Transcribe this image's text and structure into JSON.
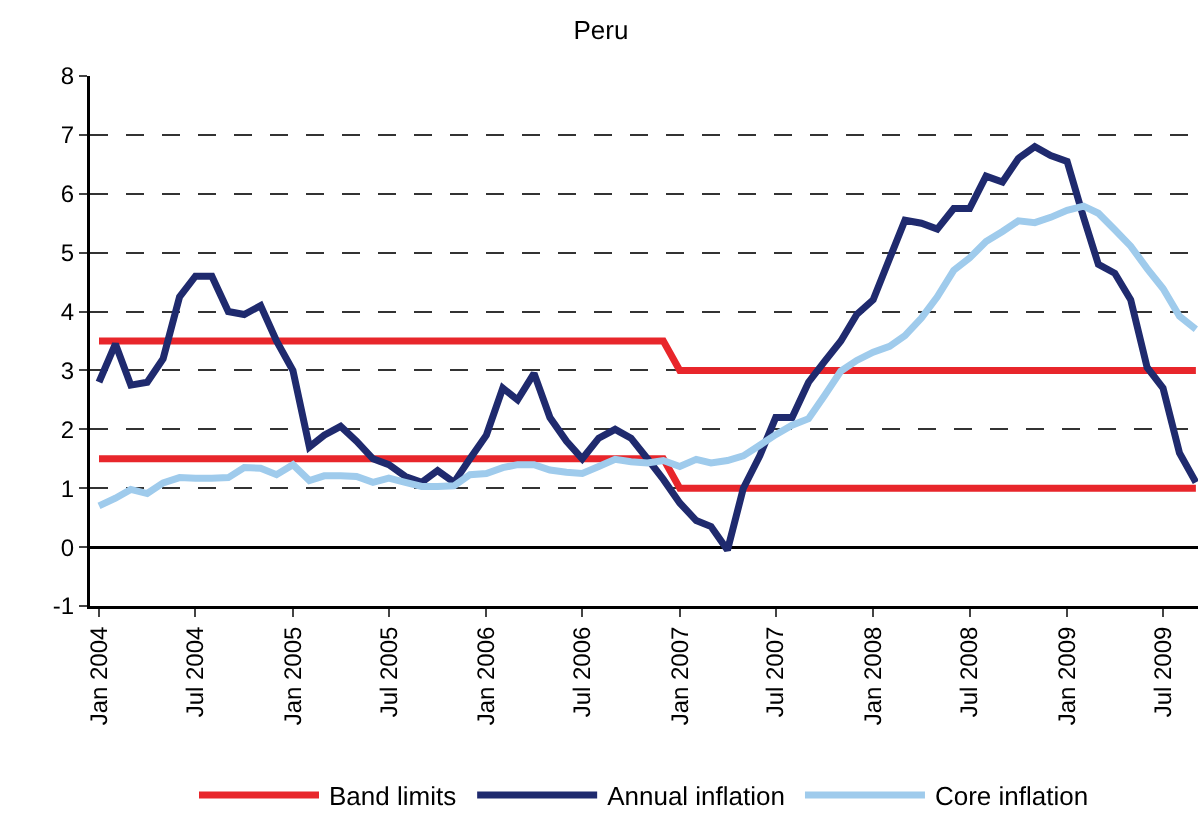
{
  "chart_data": {
    "type": "line",
    "title": "Peru",
    "x": [
      "2004-01",
      "2004-02",
      "2004-03",
      "2004-04",
      "2004-05",
      "2004-06",
      "2004-07",
      "2004-08",
      "2004-09",
      "2004-10",
      "2004-11",
      "2004-12",
      "2005-01",
      "2005-02",
      "2005-03",
      "2005-04",
      "2005-05",
      "2005-06",
      "2005-07",
      "2005-08",
      "2005-09",
      "2005-10",
      "2005-11",
      "2005-12",
      "2006-01",
      "2006-02",
      "2006-03",
      "2006-04",
      "2006-05",
      "2006-06",
      "2006-07",
      "2006-08",
      "2006-09",
      "2006-10",
      "2006-11",
      "2006-12",
      "2007-01",
      "2007-02",
      "2007-03",
      "2007-04",
      "2007-05",
      "2007-06",
      "2007-07",
      "2007-08",
      "2007-09",
      "2007-10",
      "2007-11",
      "2007-12",
      "2008-01",
      "2008-02",
      "2008-03",
      "2008-04",
      "2008-05",
      "2008-06",
      "2008-07",
      "2008-08",
      "2008-09",
      "2008-10",
      "2008-11",
      "2008-12",
      "2009-01",
      "2009-02",
      "2009-03",
      "2009-04",
      "2009-05",
      "2009-06",
      "2009-07",
      "2009-08",
      "2009-09"
    ],
    "series": [
      {
        "name": "Band limits",
        "color": "#e8262b",
        "values": [
          3.5,
          3.5,
          3.5,
          3.5,
          3.5,
          3.5,
          3.5,
          3.5,
          3.5,
          3.5,
          3.5,
          3.5,
          3.5,
          3.5,
          3.5,
          3.5,
          3.5,
          3.5,
          3.5,
          3.5,
          3.5,
          3.5,
          3.5,
          3.5,
          3.5,
          3.5,
          3.5,
          3.5,
          3.5,
          3.5,
          3.5,
          3.5,
          3.5,
          3.5,
          3.5,
          3.5,
          3,
          3,
          3,
          3,
          3,
          3,
          3,
          3,
          3,
          3,
          3,
          3,
          3,
          3,
          3,
          3,
          3,
          3,
          3,
          3,
          3,
          3,
          3,
          3,
          3,
          3,
          3,
          3,
          3,
          3,
          3,
          3,
          3
        ]
      },
      {
        "color": "#e8262b",
        "values": [
          1.5,
          1.5,
          1.5,
          1.5,
          1.5,
          1.5,
          1.5,
          1.5,
          1.5,
          1.5,
          1.5,
          1.5,
          1.5,
          1.5,
          1.5,
          1.5,
          1.5,
          1.5,
          1.5,
          1.5,
          1.5,
          1.5,
          1.5,
          1.5,
          1.5,
          1.5,
          1.5,
          1.5,
          1.5,
          1.5,
          1.5,
          1.5,
          1.5,
          1.5,
          1.5,
          1.5,
          1,
          1,
          1,
          1,
          1,
          1,
          1,
          1,
          1,
          1,
          1,
          1,
          1,
          1,
          1,
          1,
          1,
          1,
          1,
          1,
          1,
          1,
          1,
          1,
          1,
          1,
          1,
          1,
          1,
          1,
          1,
          1,
          1
        ]
      },
      {
        "name": "Annual inflation",
        "color": "#1f2a6e",
        "values": [
          2.8,
          3.45,
          2.75,
          2.8,
          3.2,
          4.25,
          4.6,
          4.6,
          4.0,
          3.95,
          4.1,
          3.5,
          3.0,
          1.7,
          1.9,
          2.05,
          1.8,
          1.5,
          1.4,
          1.2,
          1.1,
          1.3,
          1.1,
          1.5,
          1.9,
          2.7,
          2.5,
          2.95,
          2.2,
          1.8,
          1.5,
          1.85,
          2.0,
          1.85,
          1.5,
          1.15,
          0.75,
          0.45,
          0.35,
          -0.05,
          1.0,
          1.55,
          2.2,
          2.2,
          2.8,
          3.15,
          3.5,
          3.95,
          4.2,
          4.9,
          5.55,
          5.5,
          5.4,
          5.75,
          5.75,
          6.3,
          6.2,
          6.6,
          6.8,
          6.65,
          6.55,
          5.6,
          4.8,
          4.65,
          4.2,
          3.05,
          2.7,
          1.6,
          1.1
        ]
      },
      {
        "name": "Core inflation",
        "color": "#9fcbec",
        "values": [
          0.7,
          0.83,
          0.98,
          0.91,
          1.09,
          1.18,
          1.17,
          1.17,
          1.18,
          1.35,
          1.34,
          1.23,
          1.4,
          1.13,
          1.21,
          1.21,
          1.2,
          1.1,
          1.17,
          1.1,
          1.03,
          1.03,
          1.04,
          1.23,
          1.25,
          1.35,
          1.4,
          1.4,
          1.31,
          1.27,
          1.25,
          1.37,
          1.49,
          1.45,
          1.43,
          1.47,
          1.37,
          1.49,
          1.43,
          1.47,
          1.55,
          1.73,
          1.91,
          2.07,
          2.18,
          2.57,
          2.99,
          3.17,
          3.31,
          3.41,
          3.59,
          3.89,
          4.25,
          4.7,
          4.91,
          5.19,
          5.36,
          5.54,
          5.51,
          5.6,
          5.72,
          5.79,
          5.67,
          5.39,
          5.11,
          4.73,
          4.39,
          3.92,
          3.7
        ]
      }
    ],
    "xlim": [
      "2003-12-15",
      "2009-09-05"
    ],
    "xticks": [
      {
        "value": "2004-01",
        "label": "Jan 2004"
      },
      {
        "value": "2004-07",
        "label": "Jul 2004"
      },
      {
        "value": "2005-01",
        "label": "Jan 2005"
      },
      {
        "value": "2005-07",
        "label": "Jul 2005"
      },
      {
        "value": "2006-01",
        "label": "Jan 2006"
      },
      {
        "value": "2006-07",
        "label": "Jul 2006"
      },
      {
        "value": "2007-01",
        "label": "Jan 2007"
      },
      {
        "value": "2007-07",
        "label": "Jul 2007"
      },
      {
        "value": "2008-01",
        "label": "Jan 2008"
      },
      {
        "value": "2008-07",
        "label": "Jul 2008"
      },
      {
        "value": "2009-01",
        "label": "Jan 2009"
      },
      {
        "value": "2009-07",
        "label": "Jul 2009"
      }
    ],
    "ylim": [
      -1,
      8
    ],
    "yticks": [
      -1,
      0,
      1,
      2,
      3,
      4,
      5,
      6,
      7,
      8
    ],
    "grid": "y",
    "legend": "bottom"
  }
}
